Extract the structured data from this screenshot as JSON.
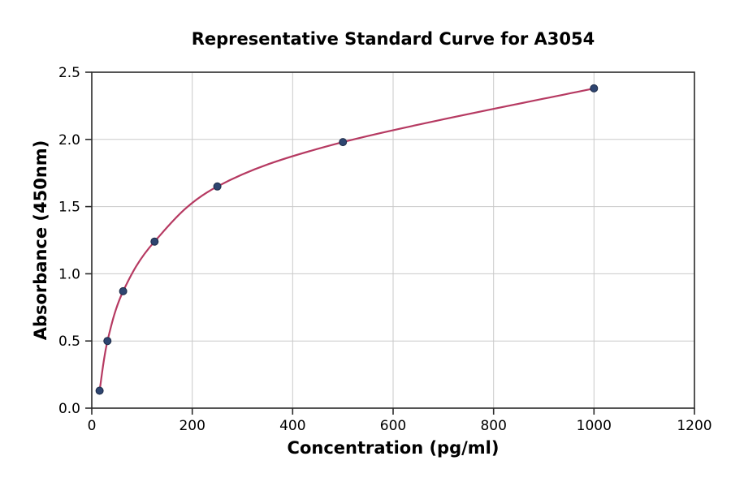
{
  "chart_data": {
    "type": "scatter",
    "title": "Representative Standard Curve for A3054",
    "xlabel": "Concentration (pg/ml)",
    "ylabel": "Absorbance (450nm)",
    "x": [
      15.6,
      31.25,
      62.5,
      125,
      250,
      500,
      1000
    ],
    "y": [
      0.13,
      0.5,
      0.87,
      1.24,
      1.65,
      1.98,
      2.38
    ],
    "fit_curve": true,
    "xlim": [
      0,
      1200
    ],
    "ylim": [
      0,
      2.5
    ],
    "xticks": [
      0,
      200,
      400,
      600,
      800,
      1000,
      1200
    ],
    "xtick_labels": [
      "0",
      "200",
      "400",
      "600",
      "800",
      "1000",
      "1200"
    ],
    "yticks": [
      0,
      0.5,
      1,
      1.5,
      2,
      2.5
    ],
    "ytick_labels": [
      "0.0",
      "0.5",
      "1.0",
      "1.5",
      "2.0",
      "2.5"
    ],
    "grid": true,
    "legend": "none",
    "colors": {
      "curve": "#b63a62",
      "marker": "#2e4570",
      "marker_edge": "#1d2b47",
      "grid": "#c9c9c9",
      "spine": "#2a2a2a",
      "text": "#000000",
      "background": "#ffffff"
    }
  }
}
